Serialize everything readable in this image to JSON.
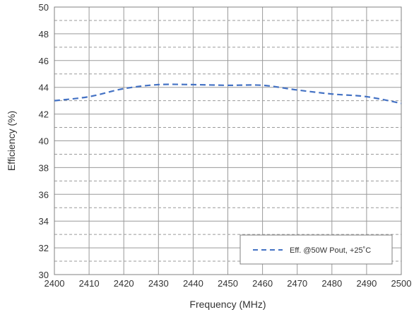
{
  "chart_data": {
    "type": "line",
    "title": "",
    "xlabel": "Frequency (MHz)",
    "ylabel": "Efficiency (%)",
    "xlim": [
      2400,
      2500
    ],
    "ylim": [
      30,
      50
    ],
    "x_ticks": [
      2400,
      2410,
      2420,
      2430,
      2440,
      2450,
      2460,
      2470,
      2480,
      2490,
      2500
    ],
    "y_ticks": [
      30,
      32,
      34,
      36,
      38,
      40,
      42,
      44,
      46,
      48,
      50
    ],
    "grid": true,
    "minor_grid": "dashed horizontal lines at odd y values",
    "legend_position": "bottom-right",
    "series": [
      {
        "name": "Eff. @50W Pout, +25˚C",
        "color": "#4472c4",
        "style": "dashed",
        "x": [
          2400,
          2410,
          2420,
          2430,
          2440,
          2450,
          2460,
          2470,
          2480,
          2490,
          2500
        ],
        "y": [
          43.0,
          43.3,
          43.9,
          44.2,
          44.2,
          44.15,
          44.15,
          43.8,
          43.5,
          43.3,
          42.8
        ]
      }
    ]
  }
}
